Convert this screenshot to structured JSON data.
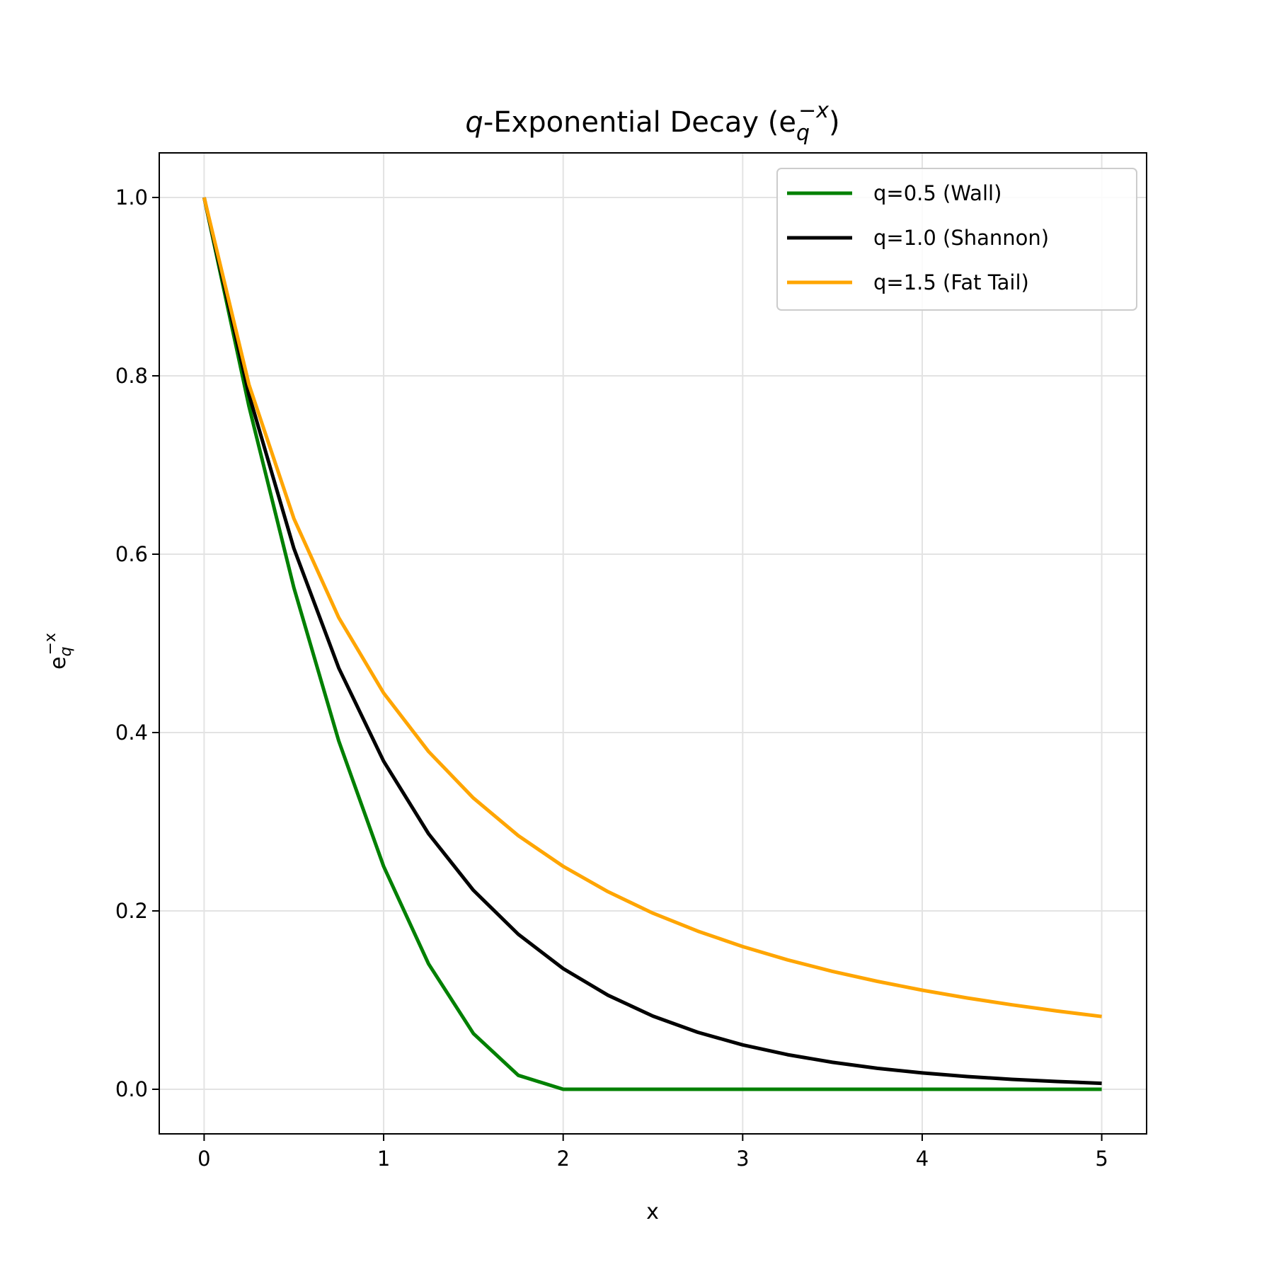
{
  "chart_data": {
    "type": "line",
    "title": "q-Exponential Decay (e_q^{-x})",
    "title_parts": {
      "italic_q": "q",
      "main": "-Exponential Decay (e",
      "sub": "q",
      "sup": "−x",
      "close": ")"
    },
    "xlabel": "x",
    "ylabel": "e_q^{-x}",
    "ylabel_parts": {
      "base": "e",
      "sub": "q",
      "sup": "−x"
    },
    "xlim": [
      -0.25,
      5.25
    ],
    "ylim": [
      -0.05,
      1.05
    ],
    "xticks": [
      0,
      1,
      2,
      3,
      4,
      5
    ],
    "xtick_labels": [
      "0",
      "1",
      "2",
      "3",
      "4",
      "5"
    ],
    "yticks": [
      0.0,
      0.2,
      0.4,
      0.6,
      0.8,
      1.0
    ],
    "ytick_labels": [
      "0.0",
      "0.2",
      "0.4",
      "0.6",
      "0.8",
      "1.0"
    ],
    "grid": true,
    "legend_position": "top-right",
    "x": [
      0,
      0.25,
      0.5,
      0.75,
      1,
      1.25,
      1.5,
      1.75,
      2,
      2.25,
      2.5,
      2.75,
      3,
      3.25,
      3.5,
      3.75,
      4,
      4.25,
      4.5,
      4.75,
      5
    ],
    "series": [
      {
        "name": "q=0.5 (Wall)",
        "color": "#008000",
        "values": [
          1,
          0.7656,
          0.5625,
          0.3906,
          0.25,
          0.1406,
          0.0625,
          0.0156,
          0,
          0,
          0,
          0,
          0,
          0,
          0,
          0,
          0,
          0,
          0,
          0,
          0
        ]
      },
      {
        "name": "q=1.0 (Shannon)",
        "color": "#000000",
        "values": [
          1,
          0.7788,
          0.6065,
          0.4724,
          0.3679,
          0.2865,
          0.2231,
          0.1738,
          0.1353,
          0.1054,
          0.0821,
          0.0639,
          0.0498,
          0.0388,
          0.0302,
          0.0235,
          0.0183,
          0.0143,
          0.0111,
          0.0087,
          0.0067
        ]
      },
      {
        "name": "q=1.5 (Fat Tail)",
        "color": "#FFA500",
        "values": [
          1,
          0.7901,
          0.64,
          0.5289,
          0.4444,
          0.3787,
          0.3265,
          0.2844,
          0.25,
          0.2215,
          0.1975,
          0.1773,
          0.16,
          0.1451,
          0.1322,
          0.121,
          0.1111,
          0.1024,
          0.0947,
          0.0878,
          0.0816
        ]
      }
    ]
  }
}
